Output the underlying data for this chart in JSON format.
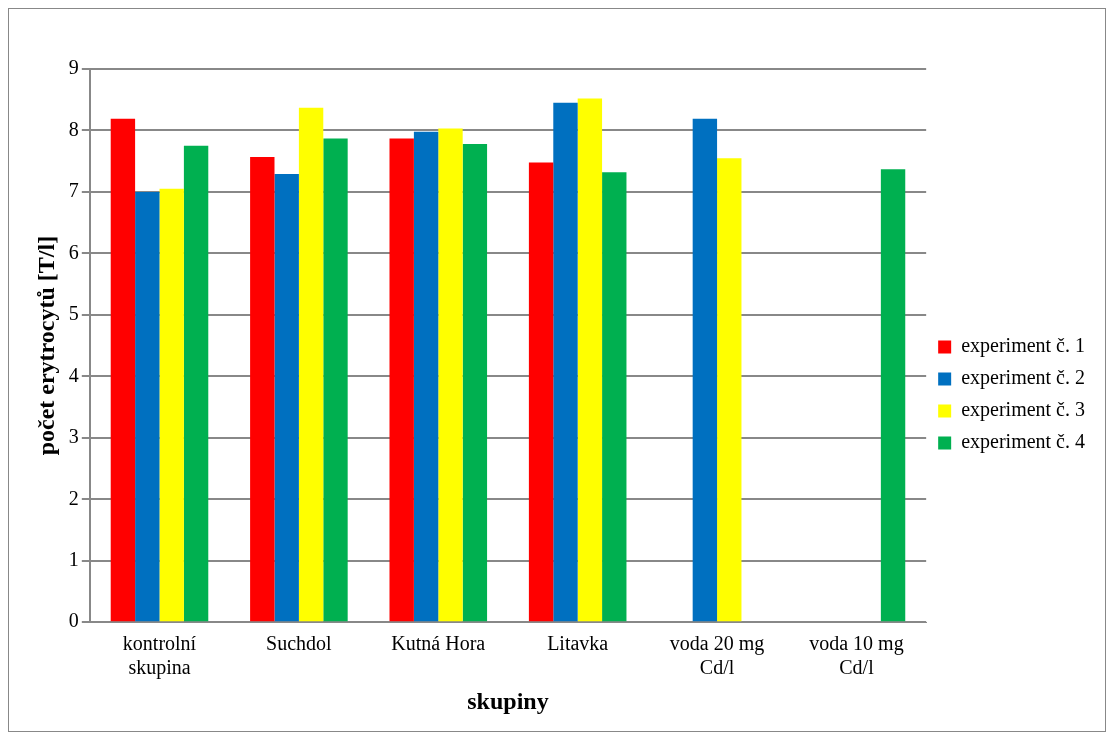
{
  "chart_data": {
    "type": "bar",
    "xlabel": "skupiny",
    "ylabel": "počet erytrocytů [T/l]",
    "categories": [
      "kontrolní skupina",
      "Suchdol",
      "Kutná Hora",
      "Litavka",
      "voda 20 mg Cd/l",
      "voda 10 mg Cd/l"
    ],
    "series": [
      {
        "name": "experiment č. 1",
        "color": "#ff0000",
        "values": [
          8.19,
          7.57,
          7.87,
          7.48,
          null,
          null
        ]
      },
      {
        "name": "experiment č. 2",
        "color": "#0070c0",
        "values": [
          7.0,
          7.29,
          7.98,
          8.45,
          8.19,
          null
        ]
      },
      {
        "name": "experiment č. 3",
        "color": "#ffff00",
        "values": [
          7.05,
          8.37,
          8.03,
          8.52,
          7.55,
          null
        ]
      },
      {
        "name": "experiment č. 4",
        "color": "#00b050",
        "values": [
          7.75,
          7.87,
          7.78,
          7.32,
          null,
          7.37
        ]
      }
    ],
    "ylim": [
      0,
      9
    ],
    "yticks": [
      0,
      1,
      2,
      3,
      4,
      5,
      6,
      7,
      8,
      9
    ],
    "grid": "y",
    "legend": "right"
  }
}
